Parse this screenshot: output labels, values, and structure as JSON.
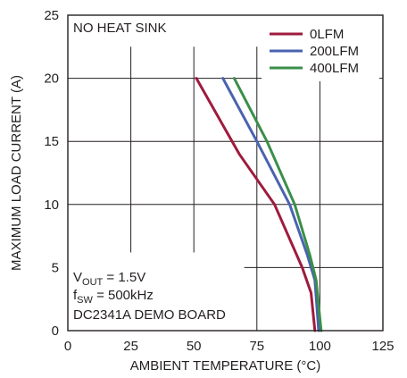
{
  "chart_data": {
    "type": "line",
    "xlabel": "AMBIENT TEMPERATURE (°C)",
    "ylabel": "MAXIMUM LOAD CURRENT (A)",
    "xlim": [
      0,
      125
    ],
    "ylim": [
      0,
      25
    ],
    "x_ticks": [
      "0",
      "25",
      "50",
      "75",
      "100",
      "125"
    ],
    "y_ticks": [
      "0",
      "5",
      "10",
      "15",
      "20",
      "25"
    ],
    "x_tick_values": [
      0,
      25,
      50,
      75,
      100,
      125
    ],
    "y_tick_values": [
      0,
      5,
      10,
      15,
      20,
      25
    ],
    "grid": true,
    "legend_position": "top-right",
    "series": [
      {
        "name": "0LFM",
        "color": "#9e1b3c",
        "points": [
          [
            51,
            20
          ],
          [
            68,
            14
          ],
          [
            82,
            10
          ],
          [
            93,
            5
          ],
          [
            96.5,
            3
          ],
          [
            98,
            0
          ]
        ]
      },
      {
        "name": "200LFM",
        "color": "#4a63b0",
        "points": [
          [
            61.5,
            20
          ],
          [
            75,
            15
          ],
          [
            88,
            10
          ],
          [
            95,
            6
          ],
          [
            98,
            4
          ],
          [
            99.5,
            0
          ]
        ]
      },
      {
        "name": "400LFM",
        "color": "#3a8f4a",
        "points": [
          [
            66,
            20
          ],
          [
            79,
            15
          ],
          [
            90,
            10
          ],
          [
            96,
            6
          ],
          [
            98.5,
            4
          ],
          [
            100.5,
            0
          ]
        ]
      }
    ],
    "annotations": {
      "top_left": "NO HEAT SINK",
      "vout_main": "V",
      "vout_sub": "OUT",
      "vout_rest": " = 1.5V",
      "fsw_main": "f",
      "fsw_sub": "SW",
      "fsw_rest": " = 500kHz",
      "board": "DC2341A DEMO BOARD"
    }
  }
}
